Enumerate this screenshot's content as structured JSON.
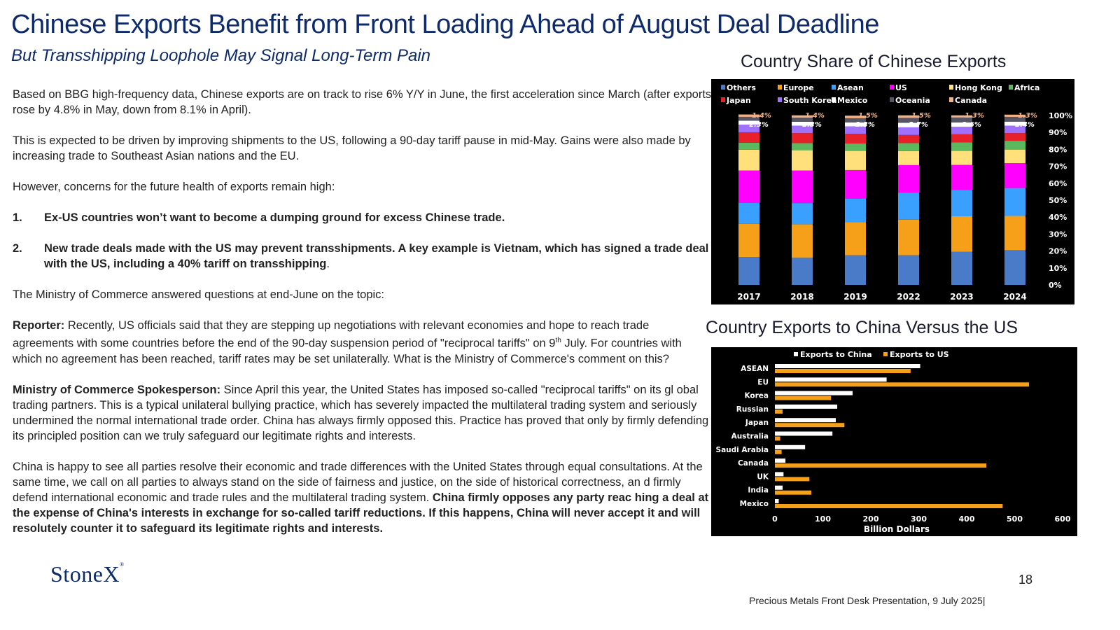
{
  "header": {
    "title": "Chinese Exports Benefit from Front Loading Ahead of August Deal Deadline",
    "subtitle": "But Transshipping Loophole May Signal Long-Term Pain"
  },
  "body": {
    "p1": "Based on BBG high-frequency data, Chinese exports are on track to rise 6% Y/Y in June, the first acceleration since March (after exports rose by 4.8% in May, down from 8.1% in April).",
    "p2": "This is expected to be driven by improving shipments to the US, following a 90-day tariff pause in mid-May. Gains were also made by increasing trade to Southeast Asian nations and the EU.",
    "p3": "However, concerns for the future health of exports remain high:",
    "item1_num": "1.",
    "item1": "Ex-US countries won’t want to become a dumping ground for excess Chinese trade.",
    "item2_num": "2.",
    "item2_bold": "New trade deals made with the US may prevent transshipments. A key example is Vietnam, which has signed a trade deal with the US, including a 40% tariff on transshipping",
    "item2_end": ".",
    "p4": "The Ministry of Commerce answered questions at end-June on the topic:",
    "reporter_label": "Reporter:",
    "reporter_text_a": " Recently, US officials said that they are stepping up negotiations with relevant economies and hope to reach trade agreements with some countries before the end of the 90-day suspension period of \"reciprocal tariffs\" on 9",
    "reporter_sup": "th",
    "reporter_text_b": " July.  For countries with which no agreement has been reached, tariff rates may be set unilaterally. What is the Ministry of Commerce's comment on this?",
    "spokes_label": "Ministry of Commerce Spokesperson:",
    "spokes_text": " Since April this year, the United States has imposed so-called \"reciprocal tariffs\" on its gl obal trading partners. This is a typical unilateral bullying practice, which has severely impacted the multilateral trading system and seriously undermined the normal international trade order. China has always firmly opposed this. Practice has proved that only by firmly defending its principled position can we truly safeguard our legitimate rights and interests.",
    "p5_text": "China is happy to see all parties resolve their economic and trade differences with the United States through equal consultations. At the same time, we call on all parties to always stand on the side of fairness and justice, on the side of historical correctness, an d firmly defend international economic and trade rules and the multilateral trading system. ",
    "p5_bold": "China firmly opposes any party reac hing a deal at the expense of China's interests in exchange for so-called tariff reductions. If this happens, China will never accept it and will resolutely counter it to safeguard its legitimate rights and interests."
  },
  "chart1_title": "Country Share of Chinese Exports",
  "chart2_title": "Country Exports to China Versus the US",
  "footer": {
    "logo": "StoneX",
    "logo_mark": "®",
    "page": "18",
    "text": "Precious Metals Front Desk Presentation, 9 July 2025|"
  },
  "chart_data": [
    {
      "type": "bar",
      "stacked": true,
      "title": "Country Share of Chinese Exports",
      "categories": [
        "2017",
        "2018",
        "2019",
        "2022",
        "2023",
        "2024"
      ],
      "ylim": [
        0,
        100
      ],
      "yticks": [
        "0%",
        "10%",
        "20%",
        "30%",
        "40%",
        "50%",
        "60%",
        "70%",
        "80%",
        "90%",
        "100%"
      ],
      "legend_position": "top",
      "series": [
        {
          "name": "Asean",
          "color": "#3aa0ff",
          "values": [
            12.5,
            12.5,
            14.0,
            16.0,
            15.5,
            16.5
          ]
        },
        {
          "name": "US",
          "color": "#ff00ff",
          "values": [
            19.0,
            19.2,
            16.8,
            16.2,
            14.8,
            14.7
          ]
        },
        {
          "name": "Hong Kong",
          "color": "#ffe07a",
          "values": [
            12.3,
            12.0,
            11.3,
            8.3,
            8.3,
            8.0
          ]
        },
        {
          "name": "Africa",
          "color": "#5cb85c",
          "values": [
            4.2,
            4.2,
            4.4,
            4.7,
            5.1,
            5.2
          ]
        },
        {
          "name": "Japan",
          "color": "#e8202a",
          "values": [
            6.1,
            5.9,
            5.7,
            4.8,
            4.7,
            4.5
          ]
        },
        {
          "name": "South Korea",
          "color": "#a070ff",
          "values": [
            4.5,
            4.4,
            4.4,
            4.5,
            4.4,
            4.4
          ]
        },
        {
          "name": "Mexico",
          "color": "#ffffff",
          "values": [
            2.3,
            2.3,
            2.3,
            2.7,
            2.6,
            2.4
          ]
        },
        {
          "name": "Oceania",
          "color": "#555566",
          "values": [
            2.3,
            2.4,
            2.5,
            2.9,
            2.9,
            2.8
          ]
        },
        {
          "name": "Canada",
          "color": "#f4b183",
          "values": [
            1.4,
            1.4,
            1.5,
            1.5,
            1.3,
            1.3
          ]
        }
      ],
      "mexico_labels": [
        "2.3%",
        "2.3%",
        "2.3%",
        "2.7%",
        "2.6%",
        "2.4%"
      ],
      "canada_labels": [
        "1.4%",
        "1.4%",
        "1.5%",
        "1.5%",
        "1.3%",
        "1.3%"
      ],
      "legend": [
        {
          "name": "Others",
          "color": "#4a7bc8"
        },
        {
          "name": "Europe",
          "color": "#f6a01a"
        },
        {
          "name": "Asean",
          "color": "#3aa0ff"
        },
        {
          "name": "US",
          "color": "#ff00ff"
        },
        {
          "name": "Hong Kong",
          "color": "#ffe07a"
        },
        {
          "name": "Africa",
          "color": "#5cb85c"
        },
        {
          "name": "Japan",
          "color": "#e8202a"
        },
        {
          "name": "South Korea",
          "color": "#a070ff"
        },
        {
          "name": "Mexico",
          "color": "#ffffff"
        },
        {
          "name": "Oceania",
          "color": "#555566"
        },
        {
          "name": "Canada",
          "color": "#f4b183"
        }
      ],
      "bottom_series": [
        {
          "name": "Others",
          "color": "#4a7bc8",
          "values": [
            16.5,
            16.0,
            17.5,
            17.5,
            19.5,
            20.5
          ]
        },
        {
          "name": "Europe",
          "color": "#f6a01a",
          "values": [
            19.5,
            19.8,
            19.5,
            21.0,
            21.0,
            20.2
          ]
        }
      ]
    },
    {
      "type": "bar",
      "orientation": "horizontal",
      "title": "Country Exports to China Versus the US",
      "xlabel": "Billion Dollars",
      "xlim": [
        0,
        600
      ],
      "xticks": [
        "0",
        "100",
        "200",
        "300",
        "400",
        "500",
        "600"
      ],
      "legend_position": "top",
      "categories": [
        "ASEAN",
        "EU",
        "Korea",
        "Russian",
        "Japan",
        "Australia",
        "Saudi Arabia",
        "Canada",
        "UK",
        "India",
        "Mexico"
      ],
      "series": [
        {
          "name": "Exports to China",
          "color": "#ffffff",
          "values": [
            303,
            233,
            162,
            130,
            127,
            120,
            63,
            22,
            18,
            16,
            8
          ]
        },
        {
          "name": "Exports to US",
          "color": "#f6a01a",
          "values": [
            283,
            530,
            117,
            16,
            145,
            11,
            14,
            441,
            72,
            76,
            475
          ]
        }
      ]
    }
  ]
}
